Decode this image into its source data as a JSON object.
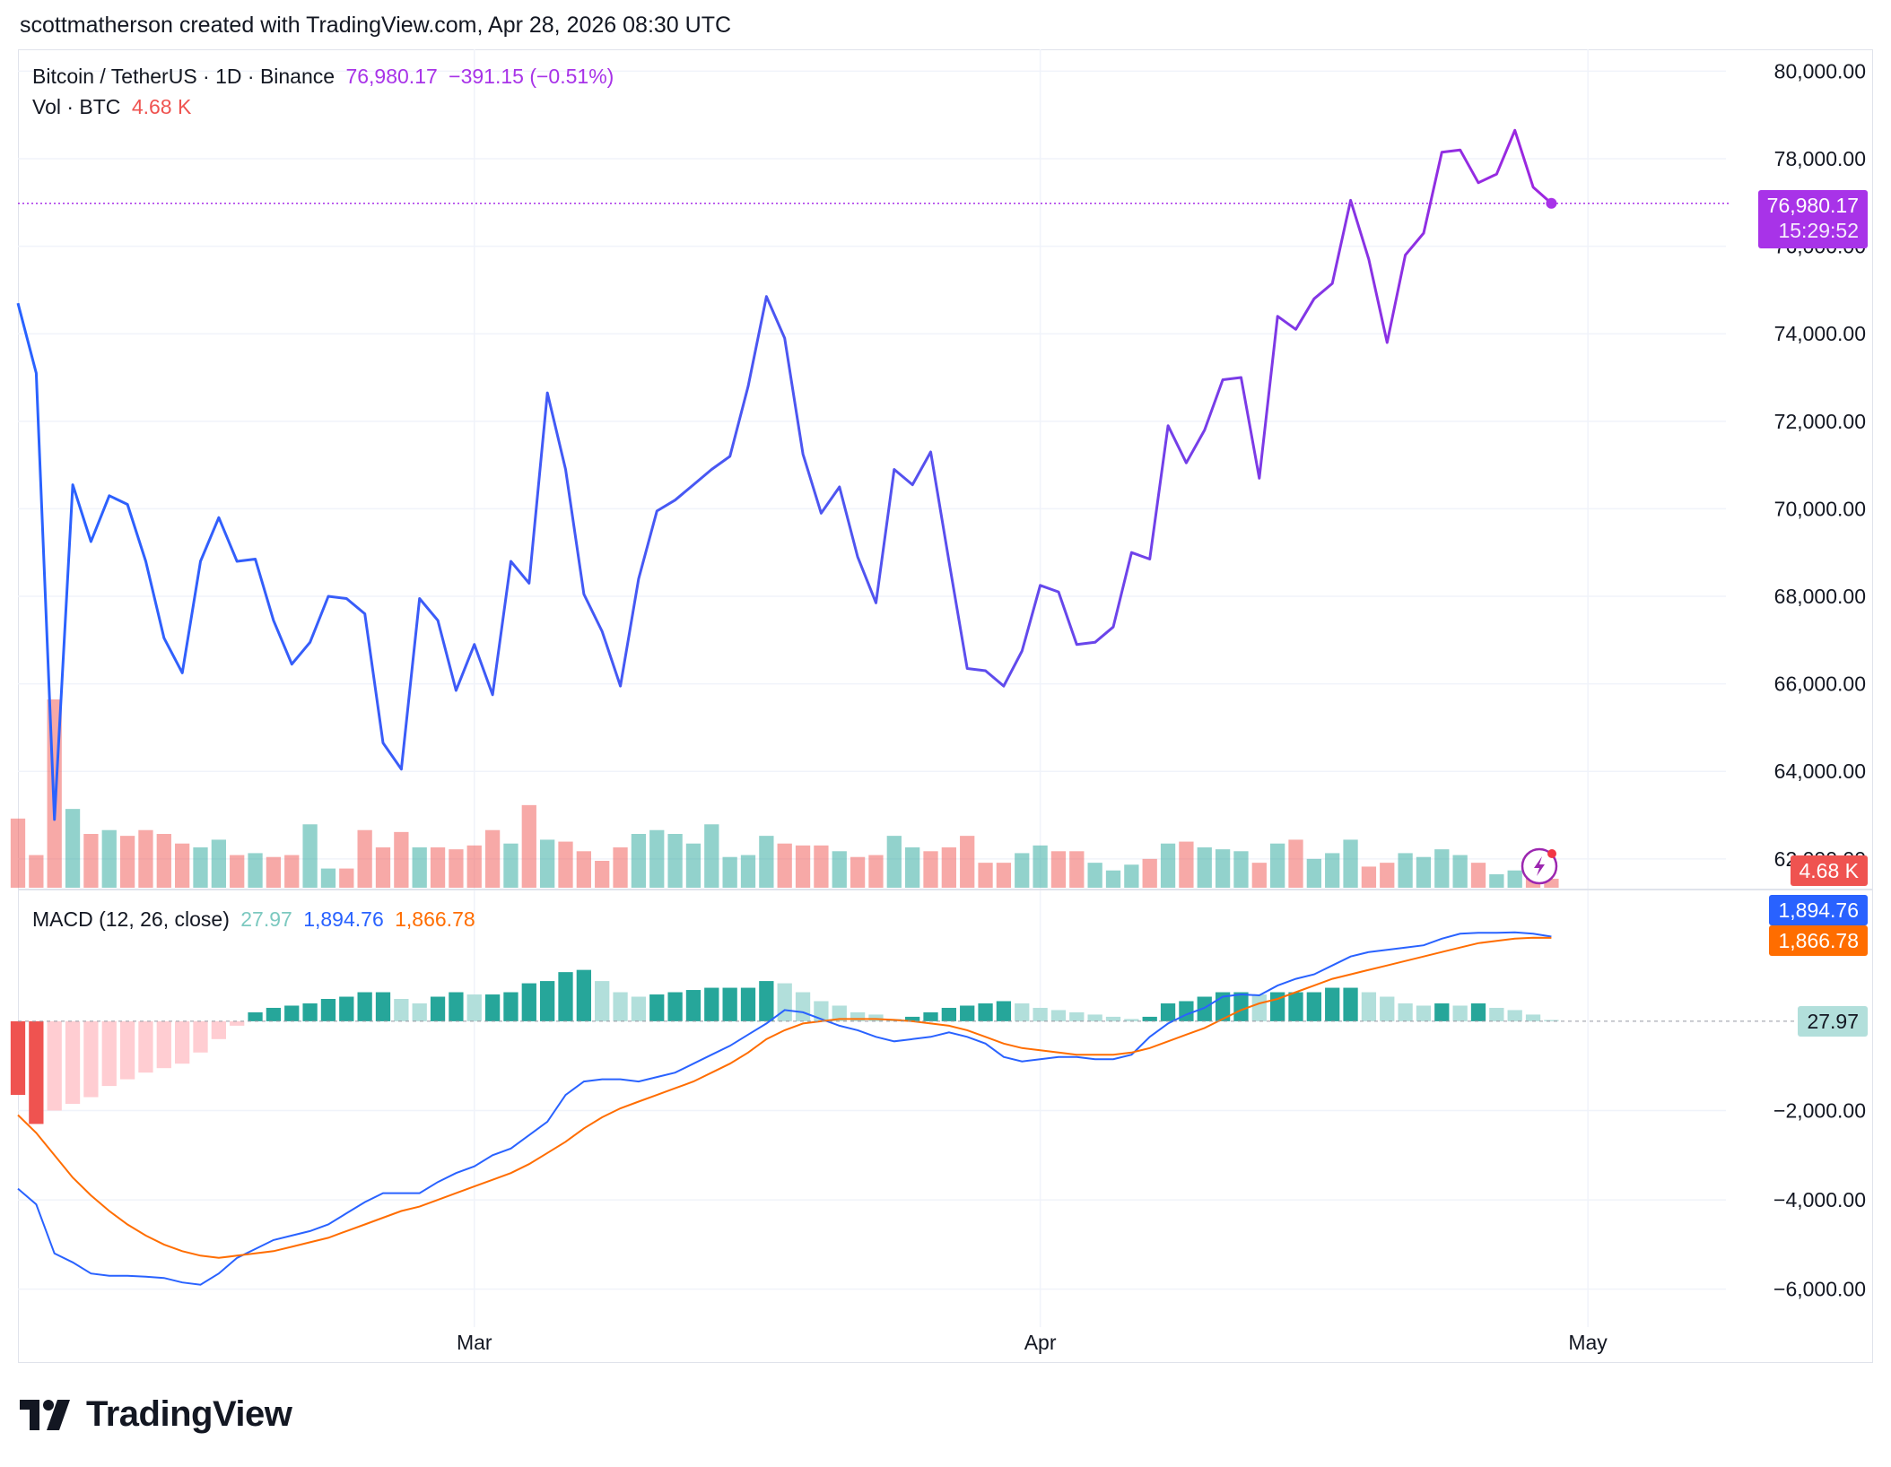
{
  "header": {
    "credit": "scottmatherson created with TradingView.com, Apr 28, 2026 08:30 UTC"
  },
  "legend": {
    "symbol": "Bitcoin / TetherUS · 1D · Binance",
    "price": "76,980.17",
    "change": "−391.15 (−0.51%)",
    "vol_label": "Vol · BTC",
    "vol_value": "4.68 K",
    "macd_label": "MACD (12, 26, close)",
    "macd_hist": "27.97",
    "macd_line": "1,894.76",
    "macd_signal": "1,866.78"
  },
  "tags": {
    "price": "76,980.17",
    "countdown": "15:29:52",
    "volume": "4.68 K",
    "macd": "1,894.76",
    "signal": "1,866.78",
    "hist": "27.97"
  },
  "brand": {
    "name": "TradingView",
    "logo_icon": "tradingview-logo-icon"
  },
  "colors": {
    "price_line_start": "#2962ff",
    "price_line_end": "#9c27b0",
    "price_accent": "#a833e8",
    "up": "#26a69a",
    "down": "#ef5350",
    "macd": "#2962ff",
    "signal": "#ff6d00",
    "grid": "#f0f3fa"
  },
  "chart_data": [
    {
      "type": "line",
      "title": "Bitcoin / TetherUS · 1D · Binance",
      "x_start": "2026-02-04",
      "x_ticks": [
        "Mar",
        "Apr",
        "May"
      ],
      "y_ticks": [
        62000,
        64000,
        66000,
        68000,
        70000,
        72000,
        74000,
        76000,
        78000,
        80000
      ],
      "ylim": [
        61300,
        80500
      ],
      "last_price": 76980.17,
      "series": [
        {
          "values": [
            74700,
            73100,
            62900,
            70550,
            69250,
            70300,
            70100,
            68800,
            67050,
            66250,
            68800,
            69800,
            68800,
            68850,
            67450,
            66450,
            66950,
            68000,
            67950,
            67600,
            64650,
            64050,
            67950,
            67450,
            65850,
            66900,
            65750,
            68800,
            68300,
            72650,
            70900,
            68050,
            67200,
            65950,
            68400,
            69950,
            70200,
            70550,
            70900,
            71200,
            72800,
            74850,
            73900,
            71250,
            69900,
            70500,
            68900,
            67850,
            70900,
            70550,
            71300,
            68800,
            66350,
            66300,
            65950,
            66750,
            68250,
            68100,
            66900,
            66950,
            67300,
            69000,
            68850,
            71900,
            71050,
            71800,
            72950,
            73000,
            70700,
            74400,
            74100,
            74800,
            75150,
            77050,
            75700,
            73800,
            75800,
            76300,
            78150,
            78200,
            77450,
            77650,
            78650,
            77350,
            76980
          ]
        }
      ]
    },
    {
      "type": "bar",
      "title": "Vol · BTC",
      "values": [
        36,
        17,
        98,
        41,
        28,
        30,
        27,
        30,
        28,
        23,
        21,
        25,
        17,
        18,
        16,
        17,
        33,
        10,
        10,
        30,
        21,
        29,
        21,
        21,
        20,
        22,
        30,
        23,
        43,
        25,
        24,
        19,
        14,
        21,
        28,
        30,
        28,
        23,
        33,
        16,
        17,
        27,
        23,
        22,
        22,
        19,
        16,
        17,
        27,
        21,
        19,
        21,
        27,
        13,
        13,
        18,
        22,
        19,
        19,
        13,
        9,
        12,
        15,
        23,
        24,
        21,
        20,
        19,
        13,
        23,
        25,
        15,
        18,
        25,
        11,
        13,
        18,
        16,
        20,
        17,
        13,
        7,
        9,
        12,
        4.68
      ],
      "directions": [
        "d",
        "d",
        "d",
        "u",
        "d",
        "u",
        "d",
        "d",
        "d",
        "d",
        "u",
        "u",
        "d",
        "u",
        "d",
        "d",
        "u",
        "u",
        "d",
        "d",
        "d",
        "d",
        "u",
        "d",
        "d",
        "d",
        "d",
        "u",
        "d",
        "u",
        "d",
        "d",
        "d",
        "d",
        "u",
        "u",
        "u",
        "u",
        "u",
        "u",
        "u",
        "u",
        "d",
        "d",
        "d",
        "u",
        "d",
        "d",
        "u",
        "u",
        "d",
        "d",
        "d",
        "d",
        "d",
        "u",
        "u",
        "d",
        "d",
        "u",
        "u",
        "u",
        "d",
        "u",
        "d",
        "u",
        "u",
        "u",
        "d",
        "u",
        "d",
        "u",
        "u",
        "u",
        "d",
        "d",
        "u",
        "u",
        "u",
        "u",
        "d",
        "u",
        "u",
        "d",
        "d"
      ]
    },
    {
      "type": "bar",
      "title": "MACD (12, 26, close)",
      "y_ticks": [
        -6000,
        -4000,
        -2000
      ],
      "ylim": [
        -6850,
        2950
      ],
      "macd_line": [
        -3750,
        -4100,
        -5200,
        -5400,
        -5650,
        -5700,
        -5700,
        -5720,
        -5750,
        -5850,
        -5900,
        -5650,
        -5300,
        -5100,
        -4900,
        -4800,
        -4700,
        -4550,
        -4300,
        -4050,
        -3850,
        -3850,
        -3850,
        -3600,
        -3400,
        -3250,
        -3000,
        -2850,
        -2550,
        -2250,
        -1650,
        -1350,
        -1300,
        -1300,
        -1350,
        -1250,
        -1150,
        -950,
        -750,
        -550,
        -300,
        -50,
        250,
        200,
        50,
        -100,
        -200,
        -350,
        -450,
        -400,
        -350,
        -250,
        -350,
        -500,
        -800,
        -900,
        -850,
        -800,
        -800,
        -850,
        -850,
        -750,
        -350,
        -50,
        150,
        300,
        550,
        600,
        580,
        800,
        950,
        1050,
        1250,
        1450,
        1550,
        1600,
        1650,
        1700,
        1850,
        1960,
        1980,
        1980,
        1990,
        1960,
        1895
      ],
      "signal_line": [
        -2100,
        -2500,
        -3000,
        -3500,
        -3900,
        -4250,
        -4550,
        -4800,
        -5000,
        -5150,
        -5250,
        -5300,
        -5250,
        -5200,
        -5150,
        -5050,
        -4950,
        -4850,
        -4700,
        -4550,
        -4400,
        -4250,
        -4150,
        -4000,
        -3850,
        -3700,
        -3550,
        -3400,
        -3200,
        -2950,
        -2700,
        -2400,
        -2150,
        -1950,
        -1800,
        -1650,
        -1500,
        -1350,
        -1150,
        -950,
        -700,
        -400,
        -200,
        -50,
        0,
        50,
        50,
        50,
        30,
        0,
        -50,
        -100,
        -200,
        -350,
        -500,
        -600,
        -650,
        -700,
        -750,
        -750,
        -750,
        -700,
        -600,
        -450,
        -300,
        -150,
        50,
        250,
        400,
        500,
        650,
        800,
        950,
        1050,
        1150,
        1250,
        1350,
        1450,
        1550,
        1650,
        1750,
        1800,
        1850,
        1870,
        1867
      ],
      "histogram": [
        -1650,
        -2300,
        -2000,
        -1850,
        -1700,
        -1450,
        -1300,
        -1150,
        -1050,
        -950,
        -700,
        -400,
        -100,
        200,
        300,
        350,
        400,
        500,
        550,
        650,
        650,
        500,
        400,
        550,
        650,
        600,
        600,
        650,
        850,
        900,
        1100,
        1150,
        900,
        650,
        550,
        600,
        650,
        700,
        750,
        750,
        750,
        900,
        850,
        650,
        450,
        350,
        200,
        150,
        50,
        100,
        200,
        300,
        350,
        400,
        450,
        400,
        300,
        250,
        200,
        150,
        100,
        50,
        100,
        400,
        450,
        550,
        650,
        650,
        600,
        650,
        650,
        650,
        750,
        750,
        650,
        550,
        400,
        350,
        400,
        350,
        400,
        300,
        250,
        150,
        28
      ]
    }
  ]
}
